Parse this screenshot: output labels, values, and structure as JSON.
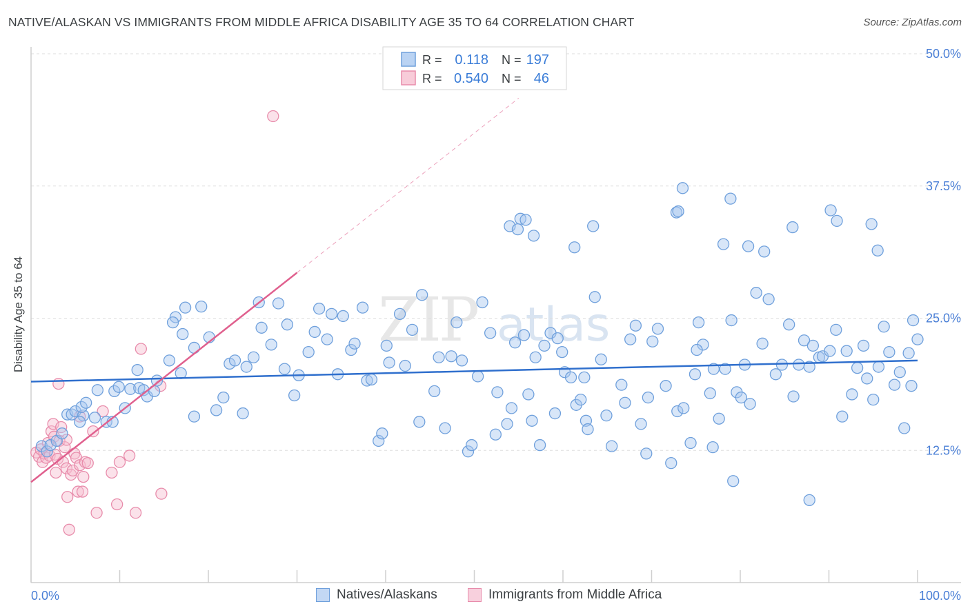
{
  "title": "NATIVE/ALASKAN VS IMMIGRANTS FROM MIDDLE AFRICA DISABILITY AGE 35 TO 64 CORRELATION CHART",
  "source": "Source: ZipAtlas.com",
  "watermark": {
    "zip": "ZIP",
    "atlas": "atlas"
  },
  "colors": {
    "blue_fill": "#a9c8f0",
    "blue_stroke": "#6fa0dc",
    "blue_line": "#2f6fcd",
    "pink_fill": "#f6bfd0",
    "pink_stroke": "#e88cab",
    "pink_line": "#e0608e",
    "grid": "#dddddd",
    "tick_label": "#4a7fd6"
  },
  "legend_top": {
    "rows": [
      {
        "r_label": "R =",
        "r_value": "0.118",
        "n_label": "N =",
        "n_value": "197"
      },
      {
        "r_label": "R =",
        "r_value": "0.540",
        "n_label": "N =",
        "n_value": "46"
      }
    ]
  },
  "legend_bottom": [
    "Natives/Alaskans",
    "Immigrants from Middle Africa"
  ],
  "chart_data": {
    "type": "scatter",
    "xlabel": "",
    "ylabel": "Disability Age 35 to 64",
    "xlim": [
      0,
      100
    ],
    "ylim": [
      0,
      50
    ],
    "x_tick_labels": [
      "0.0%",
      "100.0%"
    ],
    "y_ticks": [
      12.5,
      25.0,
      37.5,
      50.0
    ],
    "y_tick_labels": [
      "12.5%",
      "25.0%",
      "37.5%",
      "50.0%"
    ],
    "grid": true,
    "series": [
      {
        "name": "Natives/Alaskans",
        "r": 0.118,
        "n": 197,
        "trend": {
          "x": [
            0,
            100
          ],
          "y": [
            19.0,
            21.0
          ]
        },
        "points": [
          [
            1.2,
            12.9
          ],
          [
            1.8,
            12.4
          ],
          [
            2.2,
            13.0
          ],
          [
            2.9,
            13.4
          ],
          [
            3.5,
            14.1
          ],
          [
            4.1,
            15.9
          ],
          [
            4.6,
            15.9
          ],
          [
            5.0,
            16.2
          ],
          [
            5.9,
            15.8
          ],
          [
            5.5,
            15.2
          ],
          [
            5.7,
            16.6
          ],
          [
            6.2,
            17.0
          ],
          [
            7.2,
            15.6
          ],
          [
            7.5,
            18.2
          ],
          [
            8.5,
            15.2
          ],
          [
            9.2,
            15.2
          ],
          [
            9.4,
            18.1
          ],
          [
            9.9,
            18.5
          ],
          [
            10.6,
            16.5
          ],
          [
            11.2,
            18.3
          ],
          [
            12.0,
            20.1
          ],
          [
            12.2,
            18.4
          ],
          [
            12.7,
            18.2
          ],
          [
            13.1,
            17.6
          ],
          [
            13.9,
            18.1
          ],
          [
            14.2,
            19.1
          ],
          [
            15.6,
            21.0
          ],
          [
            16.3,
            25.1
          ],
          [
            16.9,
            19.8
          ],
          [
            17.4,
            26.0
          ],
          [
            17.1,
            23.5
          ],
          [
            16.0,
            24.6
          ],
          [
            18.4,
            22.2
          ],
          [
            18.4,
            15.7
          ],
          [
            19.2,
            26.1
          ],
          [
            20.1,
            23.2
          ],
          [
            20.9,
            16.3
          ],
          [
            21.7,
            17.5
          ],
          [
            22.4,
            20.7
          ],
          [
            23.0,
            21.0
          ],
          [
            23.9,
            16.0
          ],
          [
            24.3,
            20.4
          ],
          [
            25.1,
            21.3
          ],
          [
            25.7,
            26.5
          ],
          [
            26.0,
            24.1
          ],
          [
            27.1,
            22.5
          ],
          [
            27.9,
            26.4
          ],
          [
            28.6,
            20.2
          ],
          [
            28.9,
            24.4
          ],
          [
            29.7,
            17.7
          ],
          [
            30.2,
            19.6
          ],
          [
            31.3,
            21.8
          ],
          [
            32.0,
            23.7
          ],
          [
            32.5,
            25.9
          ],
          [
            33.4,
            23.0
          ],
          [
            33.9,
            25.4
          ],
          [
            34.6,
            19.7
          ],
          [
            35.2,
            25.2
          ],
          [
            36.1,
            22.0
          ],
          [
            36.5,
            22.6
          ],
          [
            37.4,
            26.0
          ],
          [
            37.9,
            19.1
          ],
          [
            38.4,
            19.2
          ],
          [
            39.2,
            13.4
          ],
          [
            39.6,
            14.1
          ],
          [
            40.1,
            22.4
          ],
          [
            40.4,
            20.8
          ],
          [
            41.6,
            25.4
          ],
          [
            42.2,
            20.5
          ],
          [
            43.0,
            23.9
          ],
          [
            43.8,
            15.2
          ],
          [
            44.1,
            27.2
          ],
          [
            45.5,
            18.1
          ],
          [
            46.0,
            21.3
          ],
          [
            46.7,
            14.6
          ],
          [
            47.4,
            21.4
          ],
          [
            48.0,
            24.6
          ],
          [
            48.6,
            21.0
          ],
          [
            49.3,
            12.4
          ],
          [
            49.7,
            13.0
          ],
          [
            50.4,
            19.5
          ],
          [
            50.9,
            26.5
          ],
          [
            51.8,
            23.6
          ],
          [
            52.4,
            14.0
          ],
          [
            52.6,
            18.0
          ],
          [
            53.7,
            15.0
          ],
          [
            54.2,
            16.5
          ],
          [
            54.6,
            22.7
          ],
          [
            55.6,
            23.4
          ],
          [
            56.1,
            17.8
          ],
          [
            56.5,
            15.3
          ],
          [
            56.9,
            21.3
          ],
          [
            57.4,
            13.0
          ],
          [
            57.9,
            22.4
          ],
          [
            58.6,
            23.6
          ],
          [
            59.1,
            16.0
          ],
          [
            59.4,
            23.1
          ],
          [
            59.9,
            21.8
          ],
          [
            60.2,
            19.9
          ],
          [
            60.9,
            19.4
          ],
          [
            61.5,
            16.8
          ],
          [
            62.0,
            17.3
          ],
          [
            62.4,
            19.4
          ],
          [
            62.6,
            15.3
          ],
          [
            63.6,
            27.0
          ],
          [
            64.3,
            21.1
          ],
          [
            64.9,
            15.8
          ],
          [
            65.5,
            12.9
          ],
          [
            66.6,
            18.7
          ],
          [
            67.0,
            17.0
          ],
          [
            67.6,
            23.0
          ],
          [
            68.2,
            24.3
          ],
          [
            68.8,
            15.0
          ],
          [
            69.6,
            17.5
          ],
          [
            70.1,
            22.8
          ],
          [
            70.7,
            24.0
          ],
          [
            71.6,
            18.6
          ],
          [
            72.2,
            11.3
          ],
          [
            72.9,
            16.2
          ],
          [
            73.6,
            16.5
          ],
          [
            74.4,
            13.2
          ],
          [
            74.9,
            19.7
          ],
          [
            75.3,
            24.6
          ],
          [
            75.8,
            22.5
          ],
          [
            76.6,
            17.9
          ],
          [
            77.0,
            20.2
          ],
          [
            77.6,
            15.5
          ],
          [
            78.3,
            20.2
          ],
          [
            79.0,
            24.8
          ],
          [
            79.6,
            18.0
          ],
          [
            80.1,
            17.5
          ],
          [
            80.5,
            20.6
          ],
          [
            81.1,
            16.9
          ],
          [
            81.8,
            27.4
          ],
          [
            82.5,
            22.6
          ],
          [
            83.2,
            26.8
          ],
          [
            84.0,
            19.7
          ],
          [
            84.7,
            20.6
          ],
          [
            85.5,
            24.4
          ],
          [
            86.0,
            17.6
          ],
          [
            86.6,
            20.6
          ],
          [
            87.2,
            22.9
          ],
          [
            87.8,
            20.4
          ],
          [
            88.2,
            22.4
          ],
          [
            88.9,
            21.3
          ],
          [
            89.3,
            21.4
          ],
          [
            90.1,
            21.9
          ],
          [
            90.8,
            23.9
          ],
          [
            91.5,
            15.7
          ],
          [
            92.0,
            21.9
          ],
          [
            92.6,
            17.8
          ],
          [
            93.2,
            20.3
          ],
          [
            93.9,
            22.4
          ],
          [
            94.3,
            19.3
          ],
          [
            95.0,
            17.3
          ],
          [
            95.6,
            20.4
          ],
          [
            96.2,
            24.2
          ],
          [
            96.8,
            21.8
          ],
          [
            97.4,
            18.7
          ],
          [
            98.0,
            19.9
          ],
          [
            98.5,
            14.6
          ],
          [
            99.0,
            21.7
          ],
          [
            99.5,
            24.8
          ],
          [
            99.3,
            18.6
          ],
          [
            100.0,
            23.0
          ],
          [
            61.3,
            31.7
          ],
          [
            80.9,
            31.8
          ],
          [
            78.1,
            32.0
          ],
          [
            90.2,
            35.2
          ],
          [
            94.8,
            33.9
          ],
          [
            73.5,
            37.3
          ],
          [
            95.5,
            31.4
          ],
          [
            54.0,
            33.7
          ],
          [
            75.1,
            22.0
          ],
          [
            85.9,
            33.6
          ],
          [
            56.7,
            32.8
          ],
          [
            63.4,
            33.7
          ],
          [
            82.7,
            31.3
          ],
          [
            90.9,
            34.2
          ],
          [
            55.2,
            34.4
          ],
          [
            72.8,
            35.0
          ],
          [
            78.9,
            36.3
          ],
          [
            54.9,
            33.4
          ],
          [
            73.0,
            35.1
          ],
          [
            55.8,
            34.3
          ],
          [
            87.8,
            7.8
          ],
          [
            79.2,
            9.6
          ],
          [
            62.8,
            14.5
          ],
          [
            69.4,
            12.2
          ],
          [
            76.9,
            12.8
          ]
        ]
      },
      {
        "name": "Immigrants from Middle Africa",
        "r": 0.54,
        "n": 46,
        "trend": {
          "x": [
            0,
            30
          ],
          "y": [
            9.5,
            29.3
          ]
        },
        "trend_extrapolated": {
          "x": [
            30,
            55
          ],
          "y": [
            29.3,
            45.8
          ]
        },
        "points": [
          [
            0.6,
            12.3
          ],
          [
            0.9,
            11.9
          ],
          [
            1.1,
            12.6
          ],
          [
            1.3,
            11.4
          ],
          [
            1.5,
            12.2
          ],
          [
            1.7,
            11.8
          ],
          [
            1.9,
            13.2
          ],
          [
            2.1,
            12.0
          ],
          [
            2.3,
            14.3
          ],
          [
            2.5,
            15.0
          ],
          [
            2.6,
            13.8
          ],
          [
            2.7,
            12.1
          ],
          [
            2.8,
            10.4
          ],
          [
            3.0,
            11.7
          ],
          [
            3.2,
            13.4
          ],
          [
            3.4,
            14.7
          ],
          [
            3.6,
            11.4
          ],
          [
            3.8,
            12.8
          ],
          [
            4.0,
            10.8
          ],
          [
            4.1,
            8.1
          ],
          [
            4.3,
            5.0
          ],
          [
            4.5,
            10.2
          ],
          [
            4.7,
            10.6
          ],
          [
            4.9,
            12.2
          ],
          [
            5.1,
            11.8
          ],
          [
            5.3,
            8.6
          ],
          [
            5.5,
            11.1
          ],
          [
            5.8,
            8.6
          ],
          [
            6.1,
            11.4
          ],
          [
            6.4,
            11.3
          ],
          [
            7.0,
            14.3
          ],
          [
            5.5,
            15.7
          ],
          [
            7.4,
            6.6
          ],
          [
            8.1,
            16.2
          ],
          [
            9.1,
            10.4
          ],
          [
            9.7,
            7.4
          ],
          [
            10.0,
            11.4
          ],
          [
            11.1,
            12.0
          ],
          [
            11.8,
            6.6
          ],
          [
            12.4,
            22.1
          ],
          [
            14.6,
            18.6
          ],
          [
            14.7,
            8.4
          ],
          [
            3.1,
            18.8
          ],
          [
            4.0,
            13.5
          ],
          [
            5.9,
            10.0
          ],
          [
            27.3,
            44.1
          ]
        ]
      }
    ]
  }
}
